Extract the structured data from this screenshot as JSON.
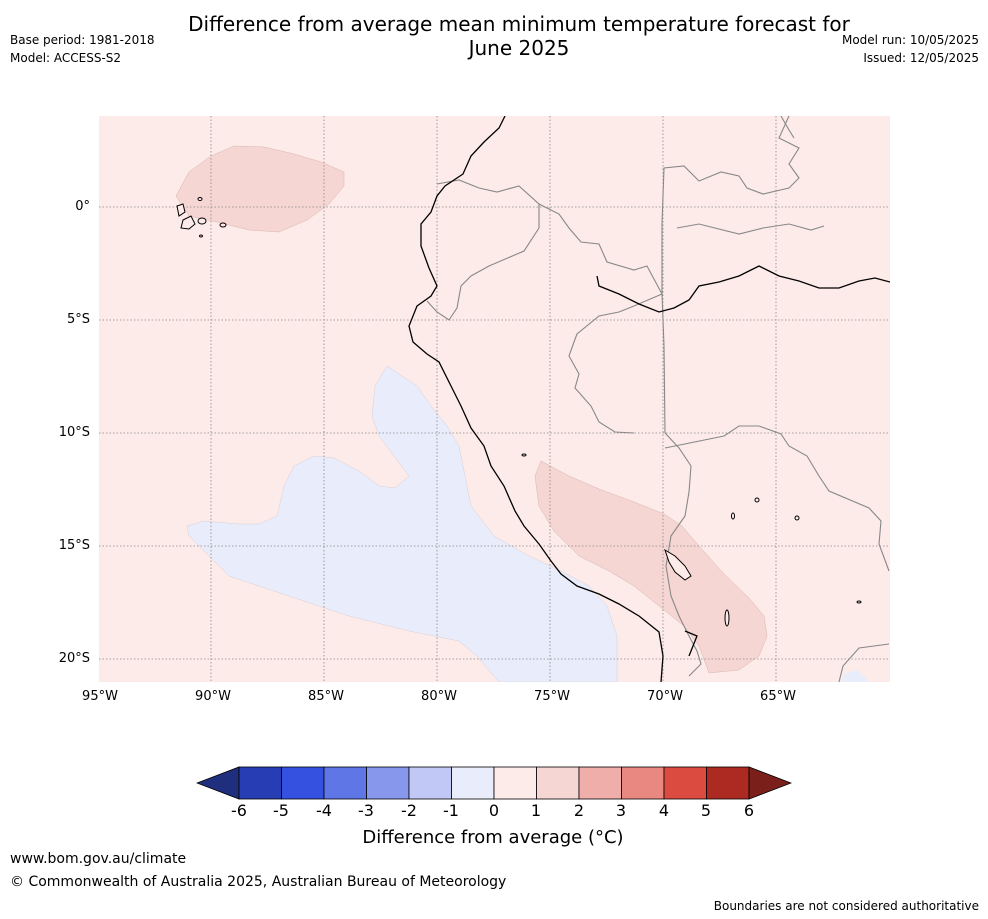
{
  "header": {
    "title": "Difference from average mean minimum temperature forecast for\nJune 2025",
    "base_period": "Base period: 1981-2018",
    "model": "Model: ACCESS-S2",
    "model_run": "Model run: 10/05/2025",
    "issued": "Issued: 12/05/2025"
  },
  "map": {
    "lat_labels": [
      "0°",
      "5°S",
      "10°S",
      "15°S",
      "20°S"
    ],
    "lon_labels": [
      "95°W",
      "90°W",
      "85°W",
      "80°W",
      "75°W",
      "70°W",
      "65°W"
    ],
    "background_anomaly_class": "0 to 1",
    "features": [
      "coastline",
      "country-boundaries",
      "galapagos-islands",
      "amazon-river",
      "lake-titicaca"
    ]
  },
  "colorbar": {
    "ticks": [
      "-6",
      "-5",
      "-4",
      "-3",
      "-2",
      "-1",
      "0",
      "1",
      "2",
      "3",
      "4",
      "5",
      "6"
    ],
    "colors": [
      "#1f2f7d",
      "#263db3",
      "#3451e0",
      "#5e76e6",
      "#8797ec",
      "#c1c8f5",
      "#e9ecfb",
      "#fcebe9",
      "#f5d6d3",
      "#efaeaa",
      "#e88880",
      "#dc4b40",
      "#ac2a22",
      "#7a1f1a"
    ],
    "label": "Difference from average (",
    "unit": "°C",
    "label_close": ")"
  },
  "footer": {
    "url": "www.bom.gov.au/climate",
    "copyright": "© Commonwealth of Australia 2025, Australian Bureau of Meteorology",
    "note": "Boundaries are not considered authoritative"
  }
}
